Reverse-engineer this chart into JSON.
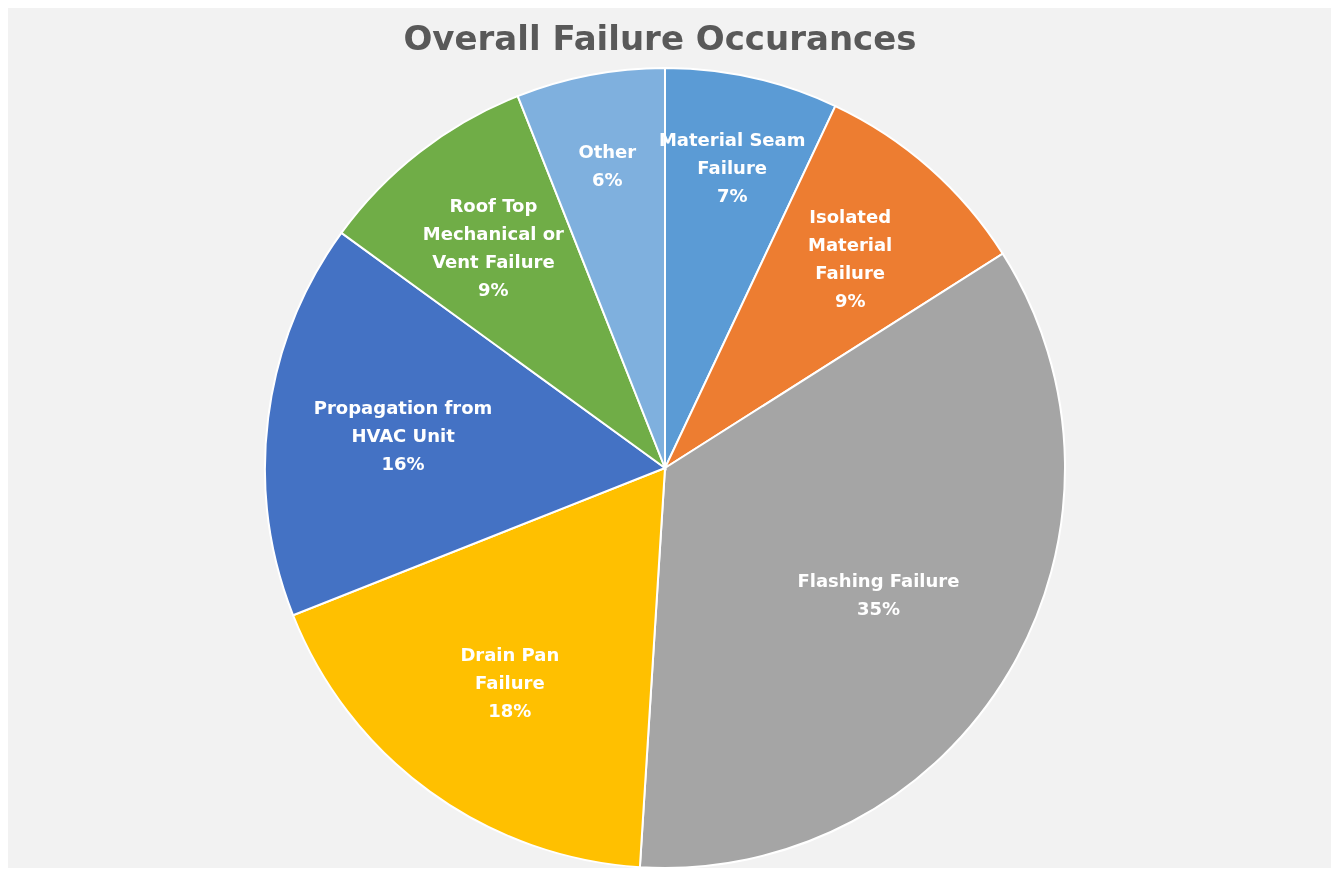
{
  "chart_data": {
    "type": "pie",
    "title": "Overall Failure Occurances",
    "categories": [
      "Material Seam Failure",
      "Isolated Material Failure",
      "Flashing Failure",
      "Drain Pan Failure",
      "Propagation from HVAC Unit",
      "Roof Top Mechanical or Vent Failure",
      "Other"
    ],
    "values": [
      7,
      9,
      35,
      18,
      16,
      9,
      6
    ],
    "value_labels": [
      "7%",
      "9%",
      "35%",
      "18%",
      "16%",
      "9%",
      "6%"
    ],
    "colors": [
      "#5b9bd5",
      "#ed7d31",
      "#a5a5a5",
      "#ffc000",
      "#4472c4",
      "#70ad47",
      "#7fb0de"
    ]
  }
}
